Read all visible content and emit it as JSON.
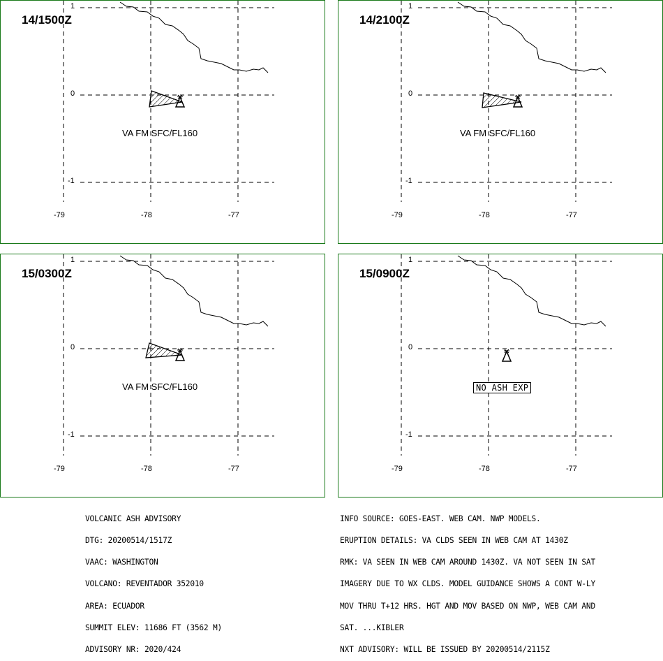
{
  "panels": [
    {
      "title": "14/1500Z",
      "label": "VA FM SFC/FL160",
      "ash": true
    },
    {
      "title": "14/2100Z",
      "label": "VA FM SFC/FL160",
      "ash": true
    },
    {
      "title": "15/0300Z",
      "label": "VA FM SFC/FL160",
      "ash": true
    },
    {
      "title": "15/0900Z",
      "label": "NO ASH EXP",
      "ash": false
    }
  ],
  "axes": {
    "lat_ticks": [
      "1",
      "0",
      "-1"
    ],
    "lon_ticks": [
      "-79",
      "-78",
      "-77"
    ]
  },
  "advisory_left": [
    "VOLCANIC ASH ADVISORY",
    "DTG: 20200514/1517Z",
    "VAAC: WASHINGTON",
    "VOLCANO: REVENTADOR 352010",
    "AREA: ECUADOR",
    "SUMMIT ELEV: 11686 FT (3562 M)",
    "ADVISORY NR: 2020/424"
  ],
  "advisory_right": [
    "INFO SOURCE: GOES-EAST. WEB CAM. NWP MODELS.",
    "ERUPTION DETAILS: VA CLDS SEEN IN WEB CAM AT 1430Z",
    "RMK: VA SEEN IN WEB CAM AROUND 1430Z. VA NOT SEEN IN SAT",
    "IMAGERY DUE TO WX CLDS. MODEL GUIDANCE SHOWS A CONT W-LY",
    "MOV THRU T+12 HRS. HGT AND MOV BASED ON NWP, WEB CAM AND",
    "SAT. ...KIBLER",
    "NXT ADVISORY: WILL BE ISSUED BY 20200514/2115Z"
  ],
  "colors": {
    "panel_border": "#1a7a1a",
    "line": "#000000"
  }
}
